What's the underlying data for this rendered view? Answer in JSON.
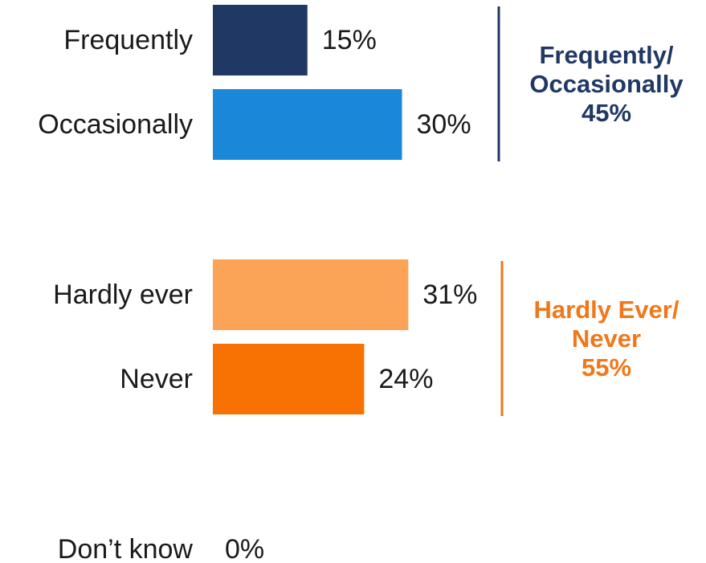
{
  "chart_data": {
    "type": "bar",
    "orientation": "horizontal",
    "categories": [
      "Frequently",
      "Occasionally",
      "Hardly ever",
      "Never",
      "Don’t know"
    ],
    "values": [
      15,
      30,
      31,
      24,
      0
    ],
    "value_labels": [
      "15%",
      "30%",
      "31%",
      "24%",
      "0%"
    ],
    "colors": [
      "#1f3864",
      "#1a87d8",
      "#fba357",
      "#f87203",
      "#ffffff"
    ],
    "groups": [
      {
        "lines": [
          "Frequently/",
          "Occasionally",
          "45%"
        ],
        "members": [
          0,
          1
        ],
        "value": 45,
        "color": "#1f3864"
      },
      {
        "lines": [
          "Hardly Ever/",
          "Never",
          "55%"
        ],
        "members": [
          2,
          3
        ],
        "value": 55,
        "color": "#f0781a"
      }
    ],
    "xlim": [
      0,
      31
    ],
    "grid": false,
    "axes_visible": false
  }
}
